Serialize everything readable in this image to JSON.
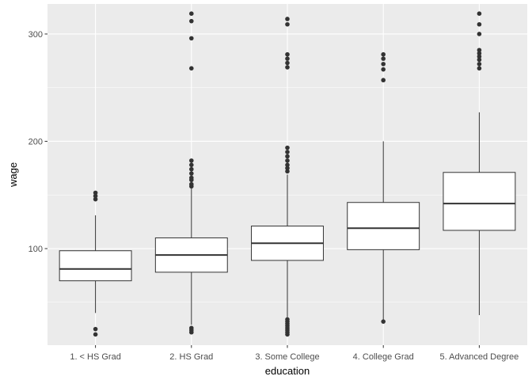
{
  "chart_data": {
    "type": "boxplot",
    "title": "",
    "xlabel": "education",
    "ylabel": "wage",
    "ylim": [
      10,
      328
    ],
    "yticks": [
      100,
      200,
      300
    ],
    "y_minor_ticks": [
      50,
      150,
      250
    ],
    "categories": [
      "1. < HS Grad",
      "2. HS Grad",
      "3. Some College",
      "4. College Grad",
      "5. Advanced Degree"
    ],
    "boxes": [
      {
        "category": "1. < HS Grad",
        "whisker_low": 40,
        "q1": 70,
        "median": 81,
        "q3": 98,
        "whisker_high": 131,
        "outliers": [
          20,
          25,
          146,
          149,
          152
        ]
      },
      {
        "category": "2. HS Grad",
        "whisker_low": 29,
        "q1": 78,
        "median": 94,
        "q3": 110,
        "whisker_high": 156,
        "outliers": [
          22,
          24,
          26,
          158,
          160,
          164,
          166,
          170,
          174,
          178,
          182,
          268,
          296,
          312,
          319
        ]
      },
      {
        "category": "3. Some College",
        "whisker_low": 36,
        "q1": 89,
        "median": 105,
        "q3": 121,
        "whisker_high": 169,
        "outliers": [
          20,
          22,
          24,
          26,
          28,
          30,
          32,
          34,
          172,
          175,
          178,
          182,
          186,
          190,
          194,
          269,
          273,
          277,
          281,
          309,
          314
        ]
      },
      {
        "category": "4. College Grad",
        "whisker_low": 33,
        "q1": 99,
        "median": 119,
        "q3": 143,
        "whisker_high": 200,
        "outliers": [
          32,
          257,
          267,
          272,
          277,
          281
        ]
      },
      {
        "category": "5. Advanced Degree",
        "whisker_low": 38,
        "q1": 117,
        "median": 142,
        "q3": 171,
        "whisker_high": 227,
        "outliers": [
          268,
          272,
          276,
          279,
          282,
          285,
          300,
          309,
          319
        ]
      }
    ],
    "colors": {
      "panel_background": "#ebebeb",
      "grid_major": "#ffffff",
      "box_fill": "#ffffff",
      "box_stroke": "#333333",
      "outlier": "#333333",
      "tick": "#333333"
    }
  }
}
